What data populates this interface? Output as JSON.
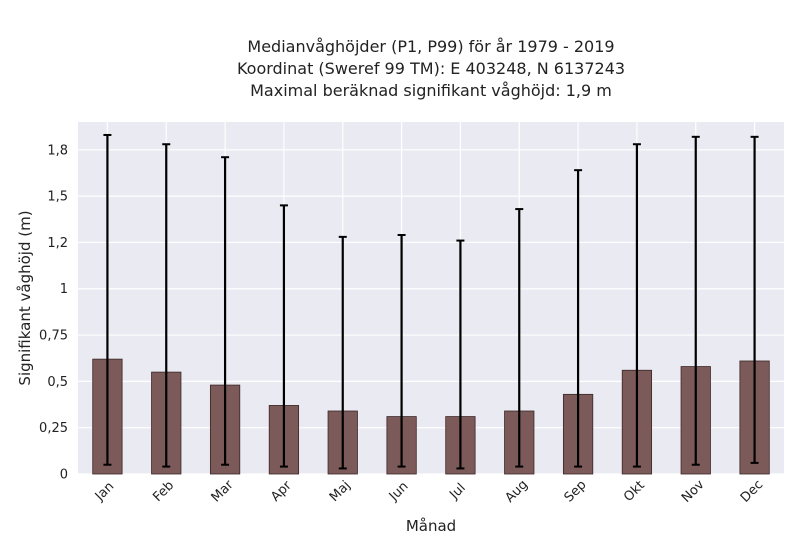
{
  "chart_data": {
    "type": "bar",
    "title_lines": [
      "Medianvåghöjder (P1, P99) för år 1979 - 2019",
      "Koordinat (Sweref 99 TM): E 403248, N 6137243",
      "Maximal beräknad signifikant våghöjd: 1,9 m"
    ],
    "xlabel": "Månad",
    "ylabel": "Signifikant våghöjd (m)",
    "categories": [
      "Jan",
      "Feb",
      "Mar",
      "Apr",
      "Maj",
      "Jun",
      "Jul",
      "Aug",
      "Sep",
      "Okt",
      "Nov",
      "Dec"
    ],
    "series": [
      {
        "values": [
          0.62,
          0.55,
          0.48,
          0.37,
          0.34,
          0.31,
          0.31,
          0.34,
          0.43,
          0.56,
          0.58,
          0.61
        ],
        "err_low": [
          0.05,
          0.04,
          0.05,
          0.04,
          0.03,
          0.04,
          0.03,
          0.04,
          0.04,
          0.04,
          0.05,
          0.06
        ],
        "err_high": [
          1.83,
          1.78,
          1.71,
          1.45,
          1.28,
          1.29,
          1.26,
          1.43,
          1.64,
          1.78,
          1.82,
          1.82
        ]
      }
    ],
    "ylim": [
      0,
      1.9
    ],
    "yticks": [
      0,
      0.25,
      0.5,
      0.75,
      1,
      1.25,
      1.5,
      1.75
    ],
    "ytick_labels": [
      "0",
      "0,25",
      "0,5",
      "0,75",
      "1",
      "1,2",
      "1,5",
      "1,8"
    ],
    "grid": true,
    "colors": {
      "bar": "#7d5a5a",
      "bar_edge": "#3a2626",
      "errorbar": "#000000",
      "plot_background": "#eaeaf2",
      "grid": "#ffffff"
    }
  }
}
